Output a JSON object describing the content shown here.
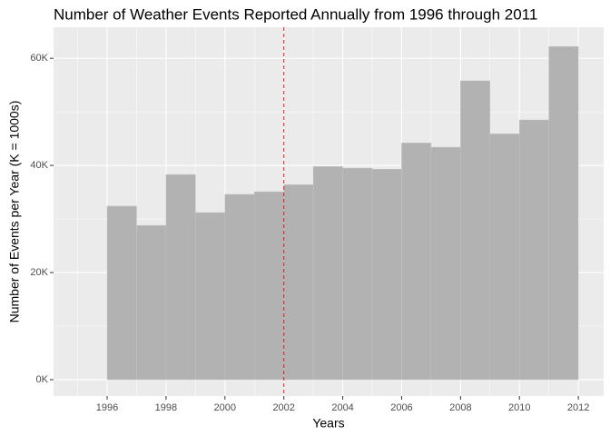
{
  "chart_data": {
    "type": "histogram",
    "title": "Number of Weather Events Reported Annually from 1996 through 2011",
    "x_label": "Years",
    "y_label": "Number of Events per Year (K = 1000s)",
    "bins": [
      1996,
      1997,
      1998,
      1999,
      2000,
      2001,
      2002,
      2003,
      2004,
      2005,
      2006,
      2007,
      2008,
      2009,
      2010,
      2011,
      2012
    ],
    "counts": [
      32400,
      28800,
      38300,
      31200,
      34600,
      35100,
      36400,
      39800,
      39500,
      39300,
      44200,
      43400,
      55800,
      45900,
      48500,
      62200
    ],
    "color": "#b2b2b2",
    "vline": {
      "value": 2002,
      "color": "#e31a1c"
    },
    "xlim": [
      1994.18,
      2012.86
    ],
    "ylim": [
      -3050,
      65800
    ],
    "xticks": [
      1996,
      1998,
      2000,
      2002,
      2004,
      2006,
      2008,
      2010,
      2012
    ],
    "xminor": [
      1995,
      1997,
      1999,
      2001,
      2003,
      2005,
      2007,
      2009,
      2011
    ],
    "yticks": [
      {
        "value": 0,
        "label": "0K"
      },
      {
        "value": 20000,
        "label": "20K"
      },
      {
        "value": 40000,
        "label": "40K"
      },
      {
        "value": 60000,
        "label": "60K"
      }
    ],
    "yminor": [
      10000,
      30000,
      50000
    ],
    "grid": true
  }
}
